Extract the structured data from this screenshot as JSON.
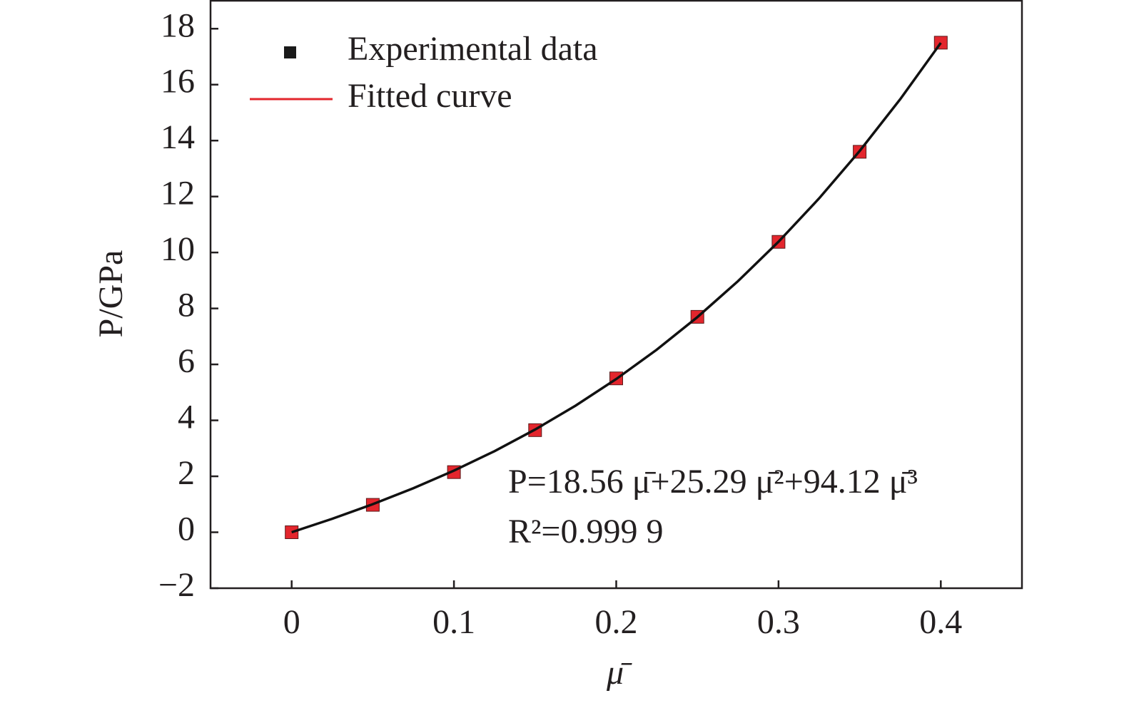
{
  "chart_data": {
    "type": "scatter",
    "x_label": "μ̄",
    "y_label": "P/GPa",
    "xlim": [
      -0.05,
      0.45
    ],
    "ylim": [
      -2,
      19
    ],
    "xticks": [
      0,
      0.1,
      0.2,
      0.3,
      0.4
    ],
    "yticks": [
      {
        "value": -2,
        "label": "−2"
      },
      0,
      2,
      4,
      6,
      8,
      10,
      12,
      14,
      16,
      18
    ],
    "grid": false,
    "legend_position": "upper left",
    "annotations": [
      "P=18.56 μ̄+25.29 μ̄²+94.12 μ̄³",
      "R²=0.999 9"
    ],
    "series": [
      {
        "name": "Experimental data",
        "kind": "markers",
        "color": "#e3262d",
        "legend_color": "#1a1a1a",
        "x": [
          0,
          0.05,
          0.1,
          0.15,
          0.2,
          0.25,
          0.3,
          0.35,
          0.4
        ],
        "values": [
          0,
          0.98,
          2.15,
          3.65,
          5.5,
          7.7,
          10.38,
          13.6,
          17.5
        ]
      },
      {
        "name": "Fitted curve",
        "kind": "line",
        "color": "#111111",
        "legend_color": "#e3262d",
        "x": [
          0,
          0.025,
          0.05,
          0.075,
          0.1,
          0.125,
          0.15,
          0.175,
          0.2,
          0.225,
          0.25,
          0.275,
          0.3,
          0.325,
          0.35,
          0.375,
          0.4
        ],
        "values": [
          0,
          0.481,
          1.003,
          1.574,
          2.203,
          2.899,
          3.671,
          4.527,
          5.477,
          6.528,
          7.691,
          8.974,
          10.385,
          11.934,
          13.629,
          15.48,
          17.494
        ]
      }
    ]
  }
}
